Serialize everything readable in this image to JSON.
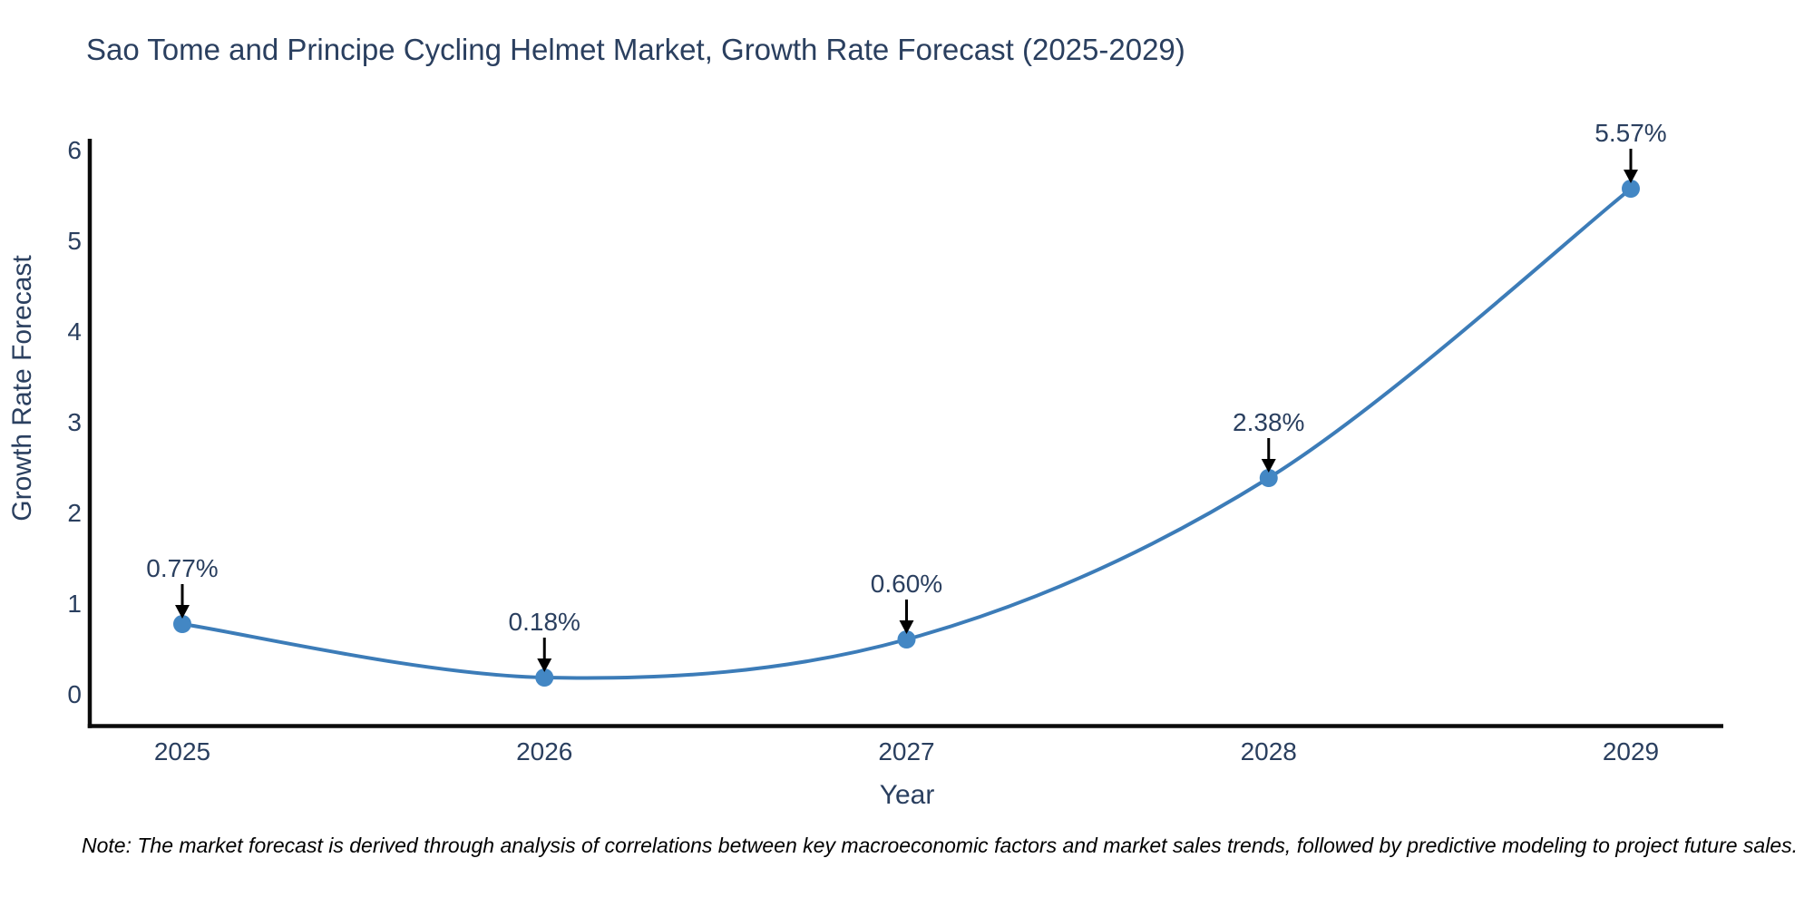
{
  "note": "Note: The market forecast is derived through analysis of correlations between key macroeconomic factors and market sales trends, followed by predictive modeling to project future sales.",
  "chart_data": {
    "type": "line",
    "title": "Sao Tome and Principe Cycling Helmet Market, Growth Rate Forecast (2025-2029)",
    "xlabel": "Year",
    "ylabel": "Growth Rate Forecast",
    "x": [
      2025,
      2026,
      2027,
      2028,
      2029
    ],
    "values": [
      0.77,
      0.18,
      0.6,
      2.38,
      5.57
    ],
    "point_labels": [
      "0.77%",
      "0.18%",
      "0.60%",
      "2.38%",
      "5.57%"
    ],
    "yticks": [
      0,
      1,
      2,
      3,
      4,
      5,
      6
    ],
    "ylim": [
      -0.35,
      6.45
    ],
    "line_shape": "spline",
    "grid": false,
    "legend_position": "none",
    "colors": {
      "line": "#3c7cb8",
      "marker": "#4387c4",
      "axis": "#0b0b0b",
      "text": "#2a3f5f",
      "annotation_arrow": "#000000",
      "background": "#ffffff"
    }
  }
}
